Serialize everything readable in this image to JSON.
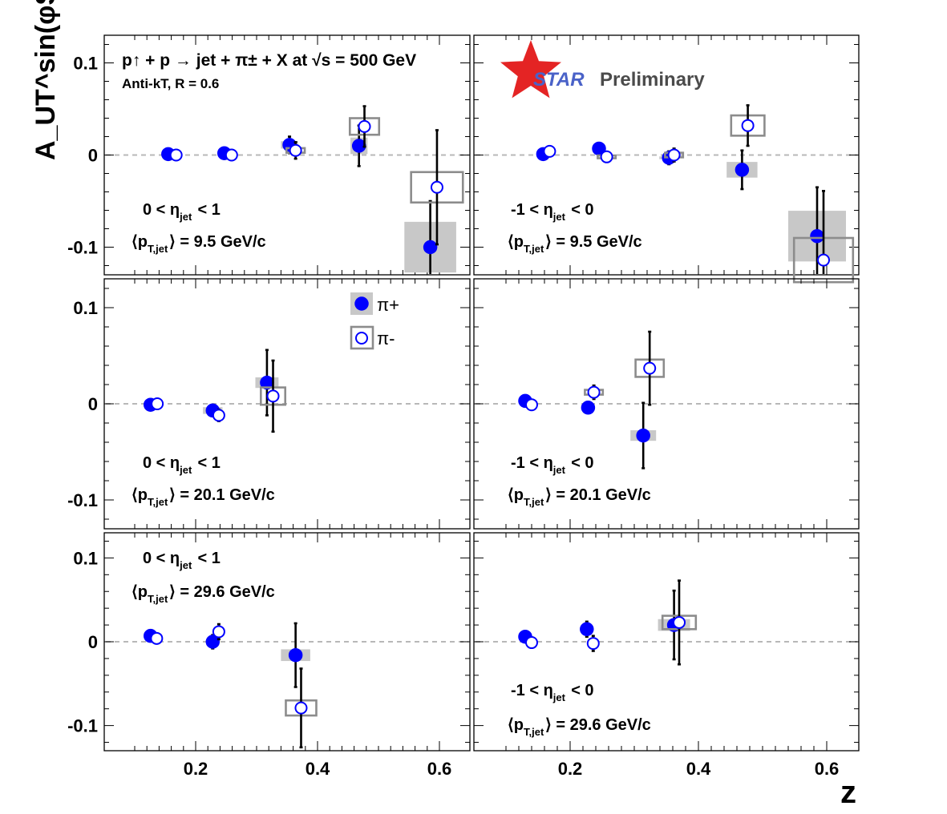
{
  "chart_data": {
    "type": "scatter",
    "title": "p↑ + p → jet + π± + X at √s = 500 GeV",
    "subtitle": "Anti-kT, R = 0.6",
    "xlabel": "z",
    "ylabel": "A_UT^sin(φS-φH)",
    "xlim": [
      0.05,
      0.65
    ],
    "ylim": [
      -0.13,
      0.13
    ],
    "x_ticks": [
      "0.2",
      "0.4",
      "0.6"
    ],
    "y_ticks": [
      "0.1",
      "0",
      "-0.1"
    ],
    "grid": false,
    "zero_line": true,
    "legend": {
      "position": "inside upper-left of middle-left panel",
      "entries": [
        {
          "label": "π+",
          "marker": "filled-circle",
          "color": "#0000ff",
          "sys": "filled grey box"
        },
        {
          "label": "π-",
          "marker": "open-circle",
          "color": "#0000ff",
          "sys": "open grey box"
        }
      ]
    },
    "watermark": {
      "star": "STAR",
      "text": "Preliminary"
    },
    "panels": [
      {
        "row": 0,
        "col": 0,
        "eta_label": "0 < η_jet < 1",
        "pt_label": "⟨p_T,jet⟩ = 9.5 GeV/c",
        "series": [
          {
            "name": "π+",
            "points": [
              {
                "x": 0.155,
                "y": 0.001,
                "err": 0.002,
                "sys_w": 0.0,
                "sys_h": 0.0
              },
              {
                "x": 0.247,
                "y": 0.002,
                "err": 0.002,
                "sys_w": 0.0,
                "sys_h": 0.0
              },
              {
                "x": 0.354,
                "y": 0.011,
                "err": 0.009,
                "sys_w": 0.028,
                "sys_h": 0.008
              },
              {
                "x": 0.468,
                "y": 0.01,
                "err": 0.022,
                "sys_w": 0.028,
                "sys_h": 0.018
              },
              {
                "x": 0.585,
                "y": -0.1,
                "err": 0.05,
                "sys_w": 0.085,
                "sys_h": 0.055
              }
            ]
          },
          {
            "name": "π-",
            "points": [
              {
                "x": 0.168,
                "y": 0.0,
                "err": 0.002,
                "sys_w": 0.0,
                "sys_h": 0.0
              },
              {
                "x": 0.259,
                "y": 0.0,
                "err": 0.002,
                "sys_w": 0.0,
                "sys_h": 0.0
              },
              {
                "x": 0.364,
                "y": 0.005,
                "err": 0.009,
                "sys_w": 0.03,
                "sys_h": 0.005
              },
              {
                "x": 0.477,
                "y": 0.031,
                "err": 0.022,
                "sys_w": 0.048,
                "sys_h": 0.018
              },
              {
                "x": 0.596,
                "y": -0.035,
                "err": 0.062,
                "sys_w": 0.085,
                "sys_h": 0.033
              }
            ]
          }
        ]
      },
      {
        "row": 0,
        "col": 1,
        "eta_label": "-1 < η_jet < 0",
        "pt_label": "⟨p_T,jet⟩ = 9.5 GeV/c",
        "series": [
          {
            "name": "π+",
            "points": [
              {
                "x": 0.158,
                "y": 0.001,
                "err": 0.002,
                "sys_w": 0.0,
                "sys_h": 0.0
              },
              {
                "x": 0.245,
                "y": 0.007,
                "err": 0.003,
                "sys_w": 0.0,
                "sys_h": 0.0
              },
              {
                "x": 0.354,
                "y": -0.003,
                "err": 0.007,
                "sys_w": 0.03,
                "sys_h": 0.003
              },
              {
                "x": 0.468,
                "y": -0.016,
                "err": 0.021,
                "sys_w": 0.048,
                "sys_h": 0.017
              },
              {
                "x": 0.585,
                "y": -0.088,
                "err": 0.053,
                "sys_w": 0.09,
                "sys_h": 0.055
              }
            ]
          },
          {
            "name": "π-",
            "points": [
              {
                "x": 0.168,
                "y": 0.004,
                "err": 0.002,
                "sys_w": 0.0,
                "sys_h": 0.0
              },
              {
                "x": 0.257,
                "y": -0.002,
                "err": 0.003,
                "sys_w": 0.028,
                "sys_h": 0.003
              },
              {
                "x": 0.362,
                "y": 0.0,
                "err": 0.007,
                "sys_w": 0.028,
                "sys_h": 0.005
              },
              {
                "x": 0.477,
                "y": 0.032,
                "err": 0.022,
                "sys_w": 0.052,
                "sys_h": 0.022
              },
              {
                "x": 0.595,
                "y": -0.114,
                "err": 0.075,
                "sys_w": 0.092,
                "sys_h": 0.048
              }
            ]
          }
        ]
      },
      {
        "row": 1,
        "col": 0,
        "eta_label": "0 < η_jet < 1",
        "pt_label": "⟨p_T,jet⟩ = 20.1 GeV/c",
        "series": [
          {
            "name": "π+",
            "points": [
              {
                "x": 0.126,
                "y": -0.001,
                "err": 0.002,
                "sys_w": 0.0,
                "sys_h": 0.0
              },
              {
                "x": 0.228,
                "y": -0.007,
                "err": 0.006,
                "sys_w": 0.032,
                "sys_h": 0.007
              },
              {
                "x": 0.317,
                "y": 0.022,
                "err": 0.034,
                "sys_w": 0.038,
                "sys_h": 0.011
              }
            ]
          },
          {
            "name": "π-",
            "points": [
              {
                "x": 0.137,
                "y": 0.0,
                "err": 0.002,
                "sys_w": 0.0,
                "sys_h": 0.0
              },
              {
                "x": 0.238,
                "y": -0.012,
                "err": 0.006,
                "sys_w": 0.0,
                "sys_h": 0.0
              },
              {
                "x": 0.327,
                "y": 0.008,
                "err": 0.037,
                "sys_w": 0.04,
                "sys_h": 0.018
              }
            ]
          }
        ]
      },
      {
        "row": 1,
        "col": 1,
        "eta_label": "-1 < η_jet < 0",
        "pt_label": "⟨p_T,jet⟩ = 20.1 GeV/c",
        "series": [
          {
            "name": "π+",
            "points": [
              {
                "x": 0.13,
                "y": 0.003,
                "err": 0.003,
                "sys_w": 0.0,
                "sys_h": 0.0
              },
              {
                "x": 0.228,
                "y": -0.004,
                "err": 0.005,
                "sys_w": 0.0,
                "sys_h": 0.0
              },
              {
                "x": 0.314,
                "y": -0.033,
                "err": 0.034,
                "sys_w": 0.04,
                "sys_h": 0.011
              }
            ]
          },
          {
            "name": "π-",
            "points": [
              {
                "x": 0.14,
                "y": -0.001,
                "err": 0.003,
                "sys_w": 0.0,
                "sys_h": 0.0
              },
              {
                "x": 0.237,
                "y": 0.012,
                "err": 0.007,
                "sys_w": 0.028,
                "sys_h": 0.005
              },
              {
                "x": 0.324,
                "y": 0.037,
                "err": 0.038,
                "sys_w": 0.044,
                "sys_h": 0.018
              }
            ]
          }
        ]
      },
      {
        "row": 2,
        "col": 0,
        "eta_label": "0 < η_jet < 1",
        "pt_label": "⟨p_T,jet⟩ = 29.6 GeV/c",
        "series": [
          {
            "name": "π+",
            "points": [
              {
                "x": 0.126,
                "y": 0.007,
                "err": 0.003,
                "sys_w": 0.0,
                "sys_h": 0.0
              },
              {
                "x": 0.228,
                "y": 0.0,
                "err": 0.008,
                "sys_w": 0.0,
                "sys_h": 0.0
              },
              {
                "x": 0.364,
                "y": -0.016,
                "err": 0.038,
                "sys_w": 0.048,
                "sys_h": 0.014
              }
            ]
          },
          {
            "name": "π-",
            "points": [
              {
                "x": 0.136,
                "y": 0.004,
                "err": 0.003,
                "sys_w": 0.0,
                "sys_h": 0.0
              },
              {
                "x": 0.238,
                "y": 0.012,
                "err": 0.009,
                "sys_w": 0.0,
                "sys_h": 0.0
              },
              {
                "x": 0.373,
                "y": -0.079,
                "err": 0.047,
                "sys_w": 0.05,
                "sys_h": 0.018
              }
            ]
          }
        ]
      },
      {
        "row": 2,
        "col": 1,
        "eta_label": "-1 < η_jet < 0",
        "pt_label": "⟨p_T,jet⟩ = 29.6 GeV/c",
        "series": [
          {
            "name": "π+",
            "points": [
              {
                "x": 0.13,
                "y": 0.006,
                "err": 0.003,
                "sys_w": 0.0,
                "sys_h": 0.0
              },
              {
                "x": 0.226,
                "y": 0.015,
                "err": 0.009,
                "sys_w": 0.0,
                "sys_h": 0.0
              },
              {
                "x": 0.362,
                "y": 0.02,
                "err": 0.041,
                "sys_w": 0.05,
                "sys_h": 0.014
              }
            ]
          },
          {
            "name": "π-",
            "points": [
              {
                "x": 0.14,
                "y": -0.001,
                "err": 0.003,
                "sys_w": 0.0,
                "sys_h": 0.0
              },
              {
                "x": 0.236,
                "y": -0.002,
                "err": 0.009,
                "sys_w": 0.0,
                "sys_h": 0.0
              },
              {
                "x": 0.37,
                "y": 0.023,
                "err": 0.05,
                "sys_w": 0.052,
                "sys_h": 0.016
              }
            ]
          }
        ]
      }
    ]
  }
}
